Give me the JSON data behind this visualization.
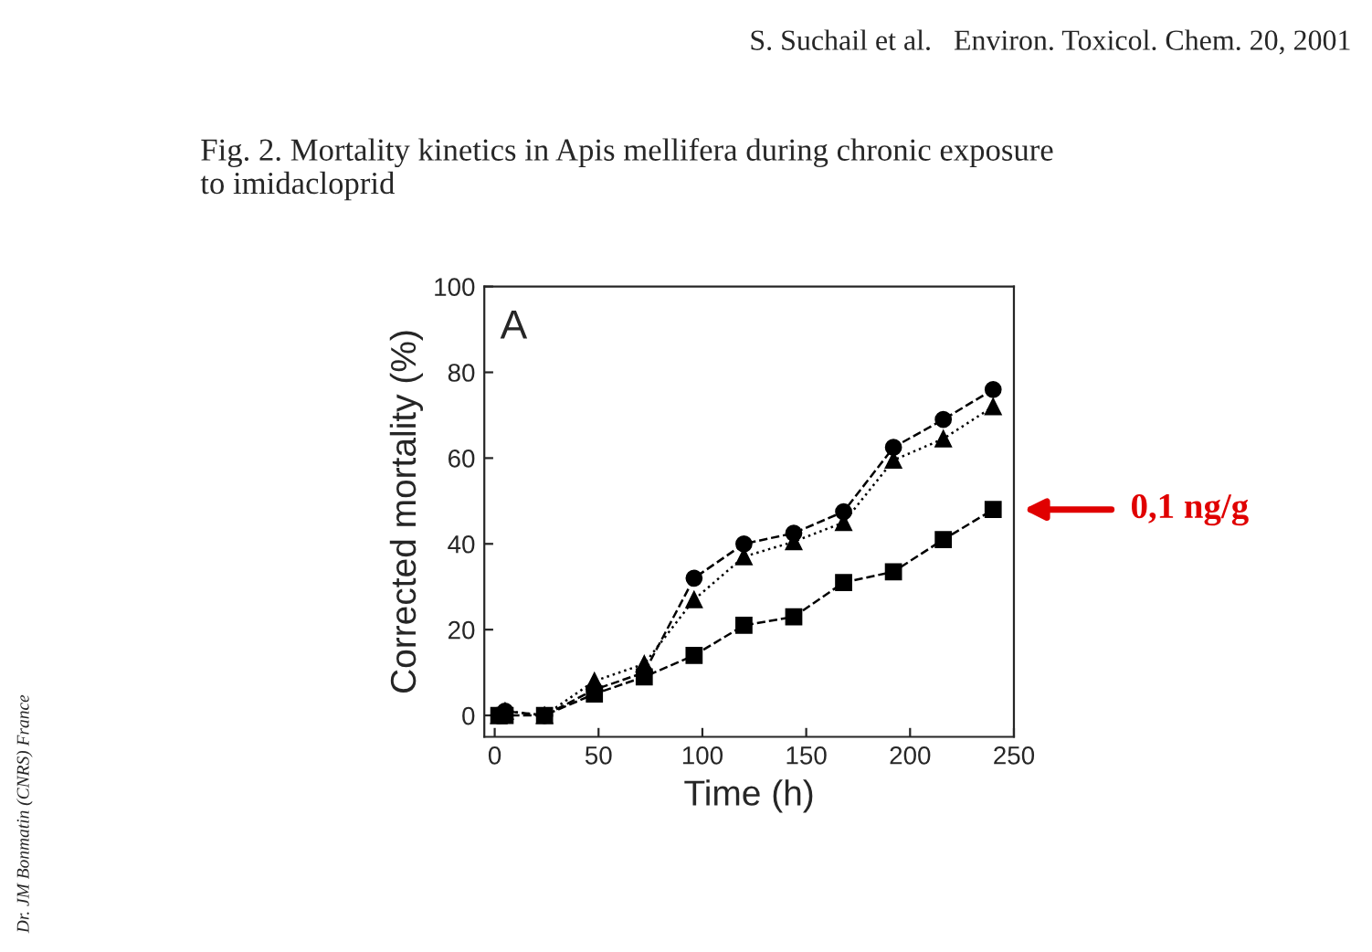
{
  "chart_data": {
    "type": "line",
    "title": "Fig. 2. Mortality kinetics in Apis mellifera during chronic exposure\nto imidacloprid",
    "xlabel": "Time (h)",
    "ylabel": "Corrected mortality (%)",
    "xlim": [
      -5,
      250
    ],
    "xticks": [
      0,
      50,
      100,
      150,
      200,
      250
    ],
    "ylim": [
      -5,
      100
    ],
    "yticks": [
      0,
      20,
      40,
      60,
      80,
      100
    ],
    "grid": false,
    "legend": false,
    "annotations": [
      "S. Suchail et al.   Environ. Toxicol. Chem. 20, 2001",
      "A",
      "Dr. JM Bonmatin (CNRS) France",
      "0,1 ng/g"
    ],
    "series": [
      {
        "color": "#000000",
        "marker": "circle",
        "line_style": "dashed",
        "x": [
          2,
          5,
          24,
          48,
          72,
          96,
          120,
          144,
          168,
          192,
          216,
          240
        ],
        "values": [
          0,
          1,
          0,
          6,
          10,
          32,
          40,
          42.5,
          47.5,
          62.5,
          69,
          76
        ]
      },
      {
        "color": "#000000",
        "marker": "triangle",
        "line_style": "dotted",
        "x": [
          2,
          5,
          24,
          48,
          72,
          96,
          120,
          144,
          168,
          192,
          216,
          240
        ],
        "values": [
          0,
          1,
          0,
          8,
          12,
          27,
          37,
          40.5,
          45,
          59.5,
          64.5,
          72
        ]
      },
      {
        "color": "#000000",
        "marker": "square",
        "line_style": "dashed",
        "x": [
          2,
          5,
          24,
          48,
          72,
          96,
          120,
          144,
          168,
          192,
          216,
          240
        ],
        "values": [
          0,
          0,
          0,
          5,
          9,
          14,
          21,
          23,
          31,
          33.5,
          41,
          48
        ]
      }
    ]
  }
}
